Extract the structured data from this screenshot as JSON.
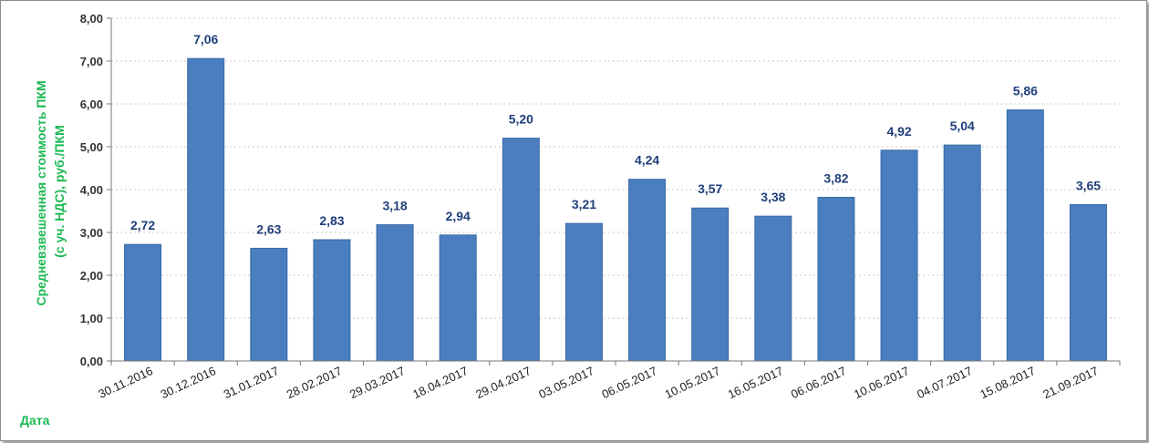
{
  "chart_data": {
    "type": "bar",
    "categories": [
      "30.11.2016",
      "30.12.2016",
      "31.01.2017",
      "28.02.2017",
      "29.03.2017",
      "18.04.2017",
      "29.04.2017",
      "03.05.2017",
      "06.05.2017",
      "10.05.2017",
      "16.05.2017",
      "06.06.2017",
      "10.06.2017",
      "04.07.2017",
      "15.08.2017",
      "21.09.2017"
    ],
    "values": [
      2.72,
      7.06,
      2.63,
      2.83,
      3.18,
      2.94,
      5.2,
      3.21,
      4.24,
      3.57,
      3.38,
      3.82,
      4.92,
      5.04,
      5.86,
      3.65
    ],
    "value_labels": [
      "2,72",
      "7,06",
      "2,63",
      "2,83",
      "3,18",
      "2,94",
      "5,20",
      "3,21",
      "4,24",
      "3,57",
      "3,38",
      "3,82",
      "4,92",
      "5,04",
      "5,86",
      "3,65"
    ],
    "ylim": [
      0,
      8
    ],
    "yticks": [
      "0,00",
      "1,00",
      "2,00",
      "3,00",
      "4,00",
      "5,00",
      "6,00",
      "7,00",
      "8,00"
    ],
    "ylabel_line1": "Средневзвешенная стоимость ПКМ",
    "ylabel_line2": "(с уч. НДС), руб./ПКМ",
    "xlabel": "Дата",
    "grid": true,
    "legend": "none",
    "colors": {
      "bar": "#4a7ebf",
      "bar_edge": "#3a6aa8",
      "grid": "#c8c8c8",
      "axis_title": "#1db954",
      "data_label": "#1f3f7a"
    }
  }
}
